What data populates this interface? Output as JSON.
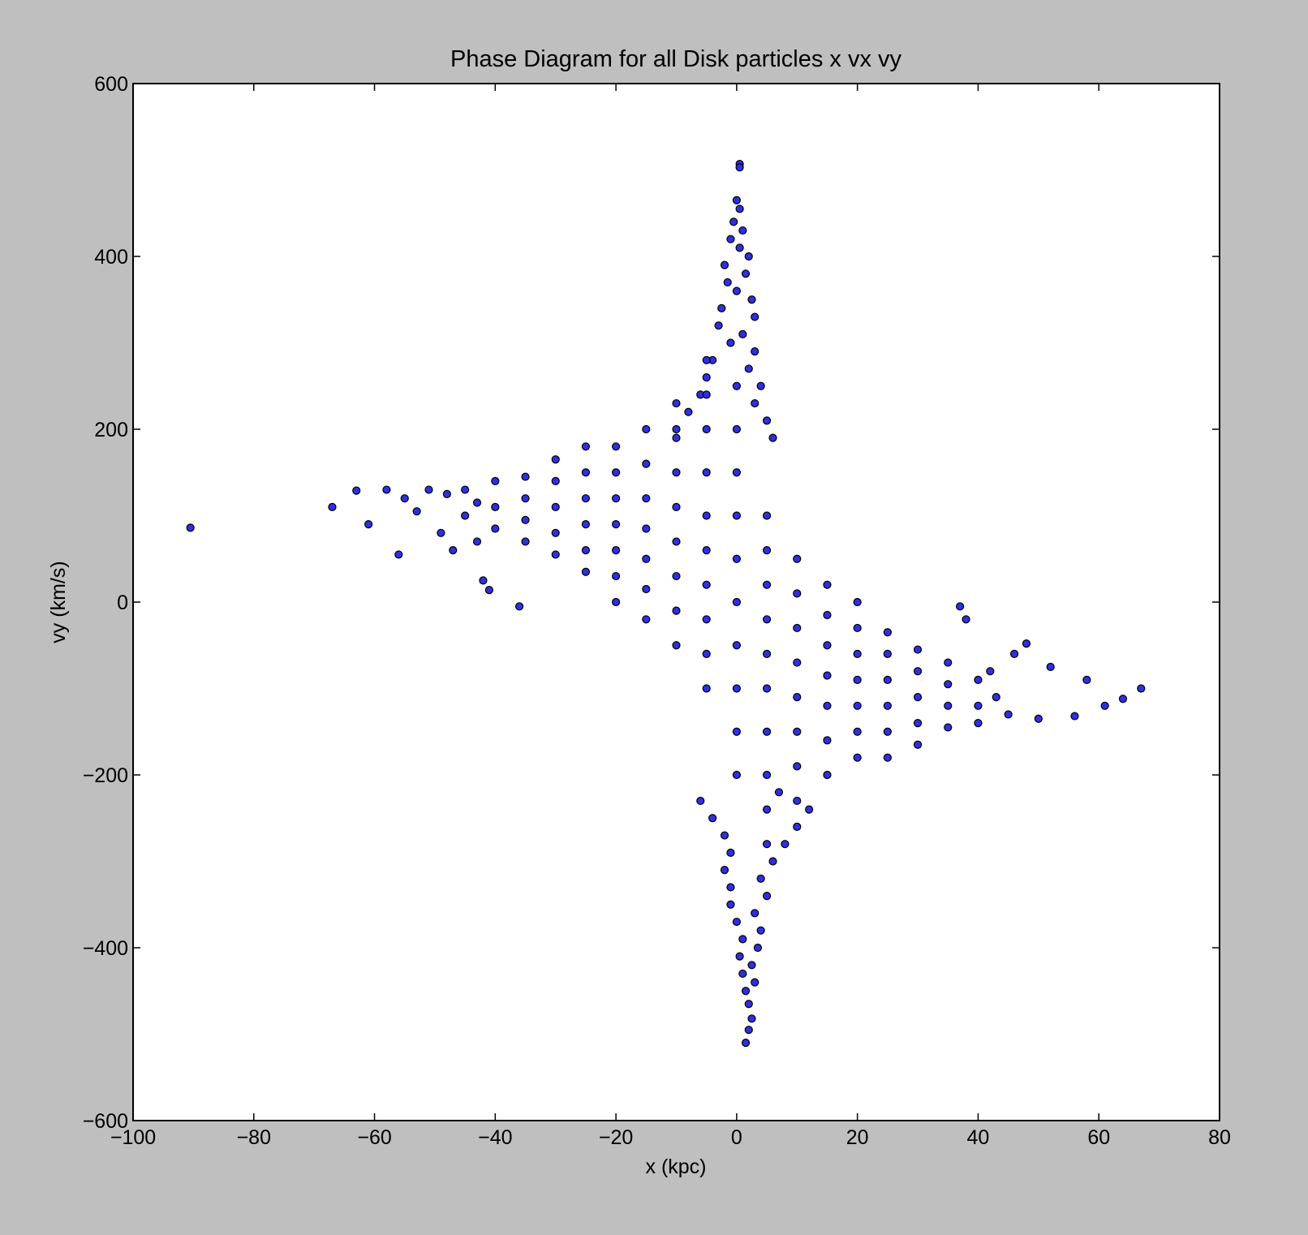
{
  "chart_data": {
    "type": "scatter",
    "title": "Phase Diagram for all Disk particles x vx vy",
    "xlabel": "x (kpc)",
    "ylabel": "vy (km/s)",
    "color": "#2f2fe0",
    "edgecolor": "#000000",
    "xlim": [
      -100,
      80
    ],
    "ylim": [
      -600,
      600
    ],
    "xticks": [
      {
        "value": -100,
        "label": "−100"
      },
      {
        "value": -80,
        "label": "−80"
      },
      {
        "value": -60,
        "label": "−60"
      },
      {
        "value": -40,
        "label": "−40"
      },
      {
        "value": -20,
        "label": "−20"
      },
      0,
      20,
      40,
      60,
      80
    ],
    "yticks": [
      {
        "value": -600,
        "label": "−600"
      },
      {
        "value": -400,
        "label": "−400"
      },
      {
        "value": -200,
        "label": "−200"
      },
      0,
      200,
      400,
      600
    ],
    "x": [
      -90.5,
      -67,
      -63,
      -61,
      -58,
      -56,
      -55,
      -53,
      -51,
      -49,
      -47,
      -45,
      -43,
      -42,
      -41,
      -36,
      67,
      64,
      61,
      58,
      56,
      52,
      50,
      48,
      46,
      37,
      38,
      0.5,
      0.5,
      1.5,
      2,
      2.5,
      0,
      0.5,
      -0.5,
      1,
      -1,
      0.5,
      2,
      -2,
      1.5,
      -1.5,
      0,
      2.5,
      -2.5,
      3,
      -3,
      1,
      -1,
      3,
      -4,
      2,
      -5,
      4,
      -6,
      3,
      -8,
      5,
      -10,
      6,
      2,
      1.5,
      3,
      1,
      2.5,
      0.5,
      3.5,
      1,
      4,
      0,
      3,
      -1,
      5,
      -1,
      4,
      -2,
      6,
      -1,
      8,
      -2,
      10,
      -4,
      12,
      -6,
      7,
      -35,
      -35,
      -35,
      -35,
      -30,
      -30,
      -30,
      -30,
      -30,
      -25,
      -25,
      -25,
      -25,
      -25,
      -25,
      -20,
      -20,
      -20,
      -20,
      -20,
      -20,
      -20,
      -15,
      -15,
      -15,
      -15,
      -15,
      -15,
      -15,
      -10,
      -10,
      -10,
      -10,
      -10,
      -10,
      -10,
      -10,
      -5,
      -5,
      -5,
      -5,
      -5,
      -5,
      -5,
      -5,
      -5,
      -5,
      0,
      0,
      0,
      0,
      0,
      0,
      0,
      0,
      0,
      0,
      5,
      5,
      5,
      5,
      5,
      5,
      5,
      5,
      5,
      5,
      10,
      10,
      10,
      10,
      10,
      10,
      10,
      10,
      15,
      15,
      15,
      15,
      15,
      15,
      15,
      20,
      20,
      20,
      20,
      20,
      20,
      20,
      25,
      25,
      25,
      25,
      25,
      25,
      30,
      30,
      30,
      30,
      30,
      35,
      35,
      35,
      35,
      40,
      40,
      40,
      43,
      45,
      42,
      -40,
      -40,
      -40,
      -45,
      -43,
      -48
    ],
    "values": [
      86,
      110,
      129,
      90,
      130,
      55,
      120,
      105,
      130,
      80,
      60,
      100,
      70,
      25,
      14,
      -5,
      -100,
      -112,
      -120,
      -90,
      -132,
      -75,
      -135,
      -48,
      -60,
      -5,
      -20,
      507,
      503,
      -510,
      -495,
      -482,
      465,
      455,
      440,
      430,
      420,
      410,
      400,
      390,
      380,
      370,
      360,
      350,
      340,
      330,
      320,
      310,
      300,
      290,
      280,
      270,
      260,
      250,
      240,
      230,
      220,
      210,
      200,
      190,
      -465,
      -450,
      -440,
      -430,
      -420,
      -410,
      -400,
      -390,
      -380,
      -370,
      -360,
      -350,
      -340,
      -330,
      -320,
      -310,
      -300,
      -290,
      -280,
      -270,
      -260,
      -250,
      -240,
      -230,
      -220,
      145,
      120,
      95,
      70,
      165,
      140,
      110,
      80,
      55,
      180,
      150,
      120,
      90,
      60,
      35,
      180,
      150,
      120,
      90,
      60,
      30,
      0,
      200,
      160,
      120,
      85,
      50,
      15,
      -20,
      230,
      190,
      150,
      110,
      70,
      30,
      -10,
      -50,
      280,
      240,
      200,
      150,
      100,
      60,
      20,
      -20,
      -60,
      -100,
      250,
      200,
      150,
      100,
      50,
      0,
      -50,
      -100,
      -150,
      -200,
      100,
      60,
      20,
      -20,
      -60,
      -100,
      -150,
      -200,
      -240,
      -280,
      50,
      10,
      -30,
      -70,
      -110,
      -150,
      -190,
      -230,
      20,
      -15,
      -50,
      -85,
      -120,
      -160,
      -200,
      0,
      -30,
      -60,
      -90,
      -120,
      -150,
      -180,
      -35,
      -60,
      -90,
      -120,
      -150,
      -180,
      -55,
      -80,
      -110,
      -140,
      -165,
      -70,
      -95,
      -120,
      -145,
      -90,
      -120,
      -140,
      -110,
      -130,
      -80,
      140,
      110,
      85,
      130,
      115,
      125
    ]
  }
}
